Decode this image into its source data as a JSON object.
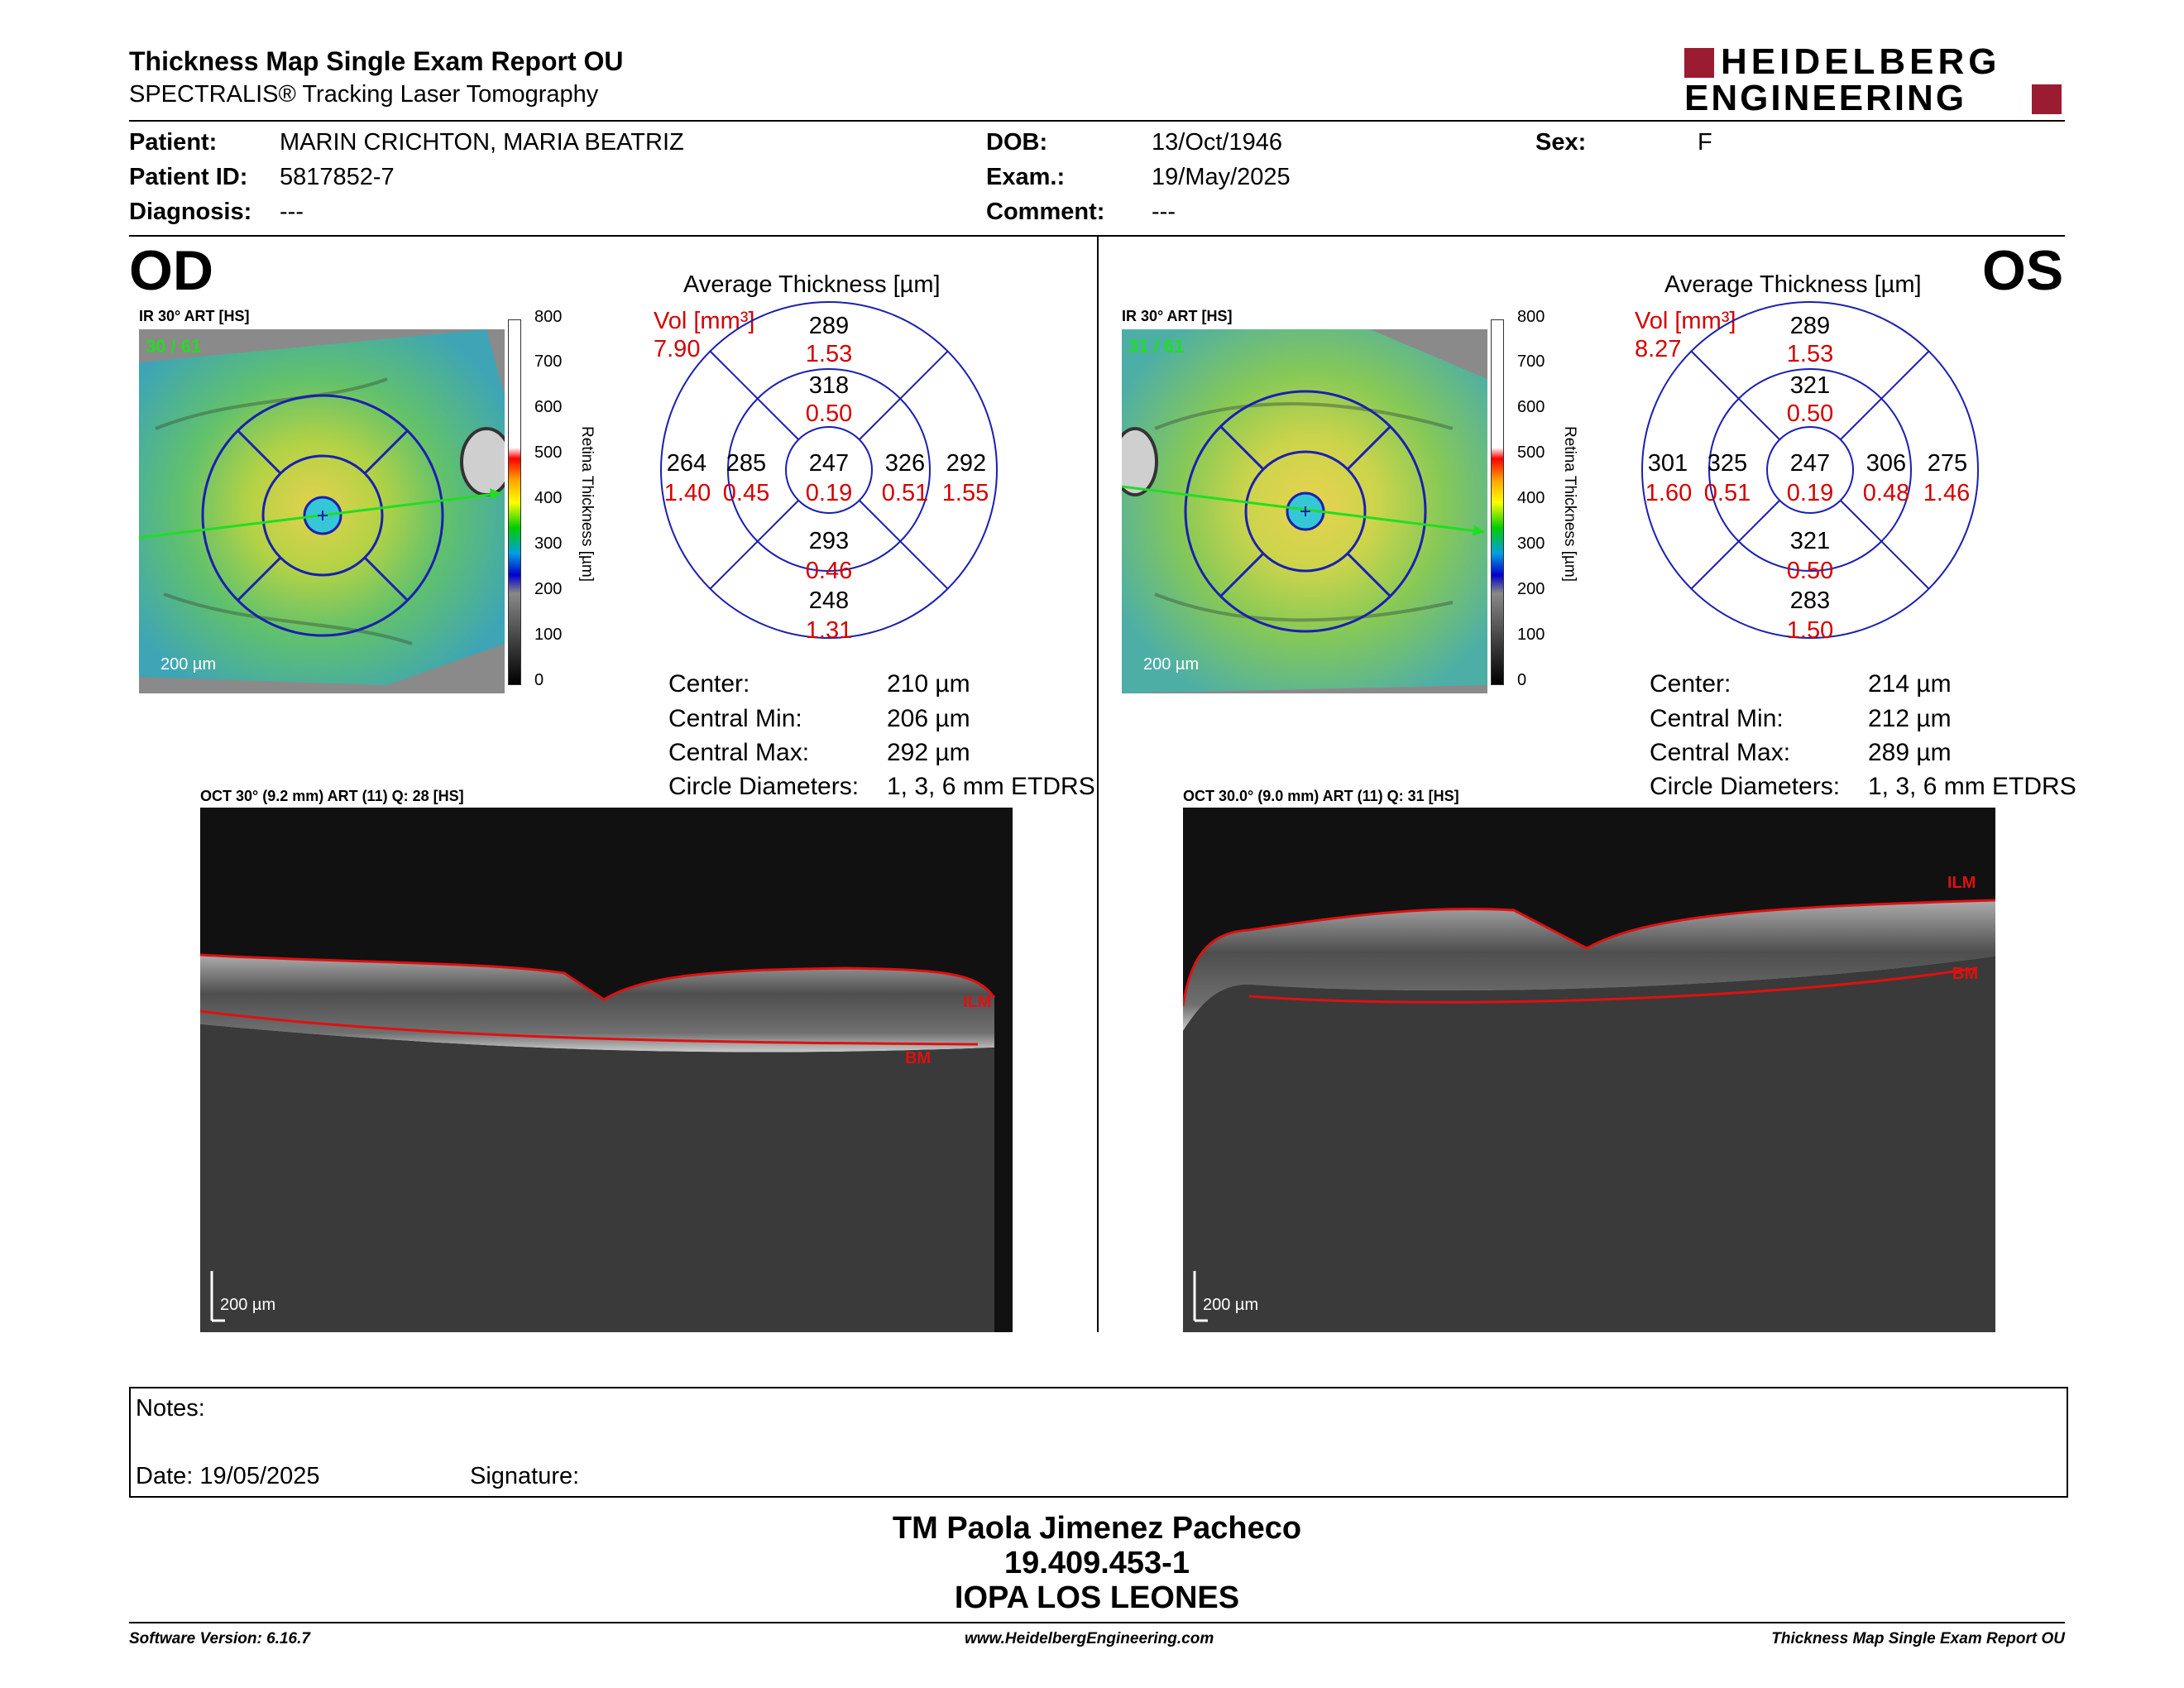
{
  "header": {
    "title": "Thickness Map Single Exam Report OU",
    "subtitle": "SPECTRALIS® Tracking Laser Tomography",
    "logo_line1": "HEIDELBERG",
    "logo_line2": "ENGINEERING",
    "brand_color": "#9b1b30"
  },
  "patient": {
    "patient_label": "Patient:",
    "patient_value": "MARIN CRICHTON, MARIA BEATRIZ",
    "id_label": "Patient ID:",
    "id_value": "5817852-7",
    "diag_label": "Diagnosis:",
    "diag_value": "---",
    "dob_label": "DOB:",
    "dob_value": "13/Oct/1946",
    "exam_label": "Exam.:",
    "exam_value": "19/May/2025",
    "comment_label": "Comment:",
    "comment_value": "---",
    "sex_label": "Sex:",
    "sex_value": "F"
  },
  "od": {
    "eye": "OD",
    "map_title": "IR 30° ART [HS]",
    "map_frames": "30 / 61",
    "scale": "200 µm",
    "colorbar_ticks": [
      "800",
      "700",
      "600",
      "500",
      "400",
      "300",
      "200",
      "100",
      "0"
    ],
    "colorbar_label": "Retina Thickness [µm]",
    "chart_title": "Average Thickness [µm]",
    "vol_label": "Vol [mm³]",
    "vol_value": "7.90",
    "center_val": "247",
    "center_vol": "0.19",
    "inner_sup": "318",
    "inner_sup_vol": "0.50",
    "inner_inf": "293",
    "inner_inf_vol": "0.46",
    "inner_left": "285",
    "inner_left_vol": "0.45",
    "inner_right": "326",
    "inner_right_vol": "0.51",
    "outer_sup": "289",
    "outer_sup_vol": "1.53",
    "outer_inf": "248",
    "outer_inf_vol": "1.31",
    "outer_left": "264",
    "outer_left_vol": "1.40",
    "outer_right": "292",
    "outer_right_vol": "1.55",
    "center_label": "Center:",
    "center_value": "210 µm",
    "min_label": "Central Min:",
    "min_value": "206 µm",
    "max_label": "Central Max:",
    "max_value": "292 µm",
    "circ_label": "Circle Diameters:",
    "circ_value": "1, 3, 6 mm ETDRS",
    "oct_title": "OCT 30° (9.2 mm) ART (11) Q: 28 [HS]",
    "ilm": "ILM",
    "bm": "BM"
  },
  "os": {
    "eye": "OS",
    "map_title": "IR 30° ART [HS]",
    "map_frames": "31 / 61",
    "scale": "200 µm",
    "colorbar_ticks": [
      "800",
      "700",
      "600",
      "500",
      "400",
      "300",
      "200",
      "100",
      "0"
    ],
    "colorbar_label": "Retina Thickness [µm]",
    "chart_title": "Average Thickness [µm]",
    "vol_label": "Vol [mm³]",
    "vol_value": "8.27",
    "center_val": "247",
    "center_vol": "0.19",
    "inner_sup": "321",
    "inner_sup_vol": "0.50",
    "inner_inf": "321",
    "inner_inf_vol": "0.50",
    "inner_left": "325",
    "inner_left_vol": "0.51",
    "inner_right": "306",
    "inner_right_vol": "0.48",
    "outer_sup": "289",
    "outer_sup_vol": "1.53",
    "outer_inf": "283",
    "outer_inf_vol": "1.50",
    "outer_left": "301",
    "outer_left_vol": "1.60",
    "outer_right": "275",
    "outer_right_vol": "1.46",
    "center_label": "Center:",
    "center_value": "214 µm",
    "min_label": "Central Min:",
    "min_value": "212 µm",
    "max_label": "Central Max:",
    "max_value": "289 µm",
    "circ_label": "Circle Diameters:",
    "circ_value": "1, 3, 6 mm ETDRS",
    "oct_title": "OCT 30.0° (9.0 mm) ART (11) Q: 31 [HS]",
    "ilm": "ILM",
    "bm": "BM"
  },
  "notes": {
    "notes_label": "Notes:",
    "date_label": "Date: 19/05/2025",
    "signature_label": "Signature:"
  },
  "signer": {
    "name": "TM Paola Jimenez Pacheco",
    "id": "19.409.453-1",
    "org": "IOPA LOS LEONES"
  },
  "footer": {
    "version": "Software Version: 6.16.7",
    "website": "www.HeidelbergEngineering.com",
    "report": "Thickness Map Single Exam Report OU"
  }
}
